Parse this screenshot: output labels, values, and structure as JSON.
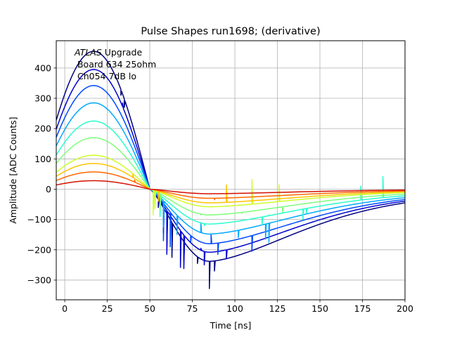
{
  "chart_data": {
    "type": "line",
    "title": "Pulse Shapes run1698; (derivative)",
    "xlabel": "Time [ns]",
    "ylabel": "Amplitude [ADC Counts]",
    "xlim": [
      -5,
      200
    ],
    "ylim": [
      -365,
      490
    ],
    "xticks": [
      0,
      25,
      50,
      75,
      100,
      125,
      150,
      175,
      200
    ],
    "xtick_labels": [
      "0",
      "25",
      "50",
      "75",
      "100",
      "125",
      "150",
      "175",
      "200"
    ],
    "yticks": [
      -300,
      -200,
      -100,
      0,
      100,
      200,
      300,
      400
    ],
    "ytick_labels": [
      "−300",
      "−200",
      "−100",
      "0",
      "100",
      "200",
      "300",
      "400"
    ],
    "grid": true,
    "annotation": {
      "italic": "ATLAS",
      "line1_rest": " Upgrade",
      "line2": " Board 634 25ohm",
      "line3": " Ch054 7dB lo"
    },
    "series": [
      {
        "color": "#00007f",
        "peak": 455,
        "undershoot": -238,
        "spikes": [
          {
            "x": 33,
            "y": 310
          },
          {
            "x": 35,
            "y": 270
          },
          {
            "x": 55,
            "y": -60
          },
          {
            "x": 58,
            "y": -145
          },
          {
            "x": 60,
            "y": -200
          },
          {
            "x": 63,
            "y": -225
          },
          {
            "x": 70,
            "y": -235
          },
          {
            "x": 78,
            "y": -245
          },
          {
            "x": 85,
            "y": -328
          },
          {
            "x": 88,
            "y": -270
          }
        ]
      },
      {
        "color": "#0000d0",
        "peak": 395,
        "undershoot": -208,
        "spikes": [
          {
            "x": 34,
            "y": 285
          },
          {
            "x": 60,
            "y": -215
          },
          {
            "x": 68,
            "y": -258
          },
          {
            "x": 70,
            "y": -262
          },
          {
            "x": 80,
            "y": -195
          },
          {
            "x": 82,
            "y": -250
          },
          {
            "x": 95,
            "y": -230
          }
        ]
      },
      {
        "color": "#0049ff",
        "peak": 342,
        "undershoot": -180,
        "spikes": [
          {
            "x": 58,
            "y": -170
          },
          {
            "x": 62,
            "y": -190
          },
          {
            "x": 74,
            "y": -175
          },
          {
            "x": 86,
            "y": -150
          },
          {
            "x": 90,
            "y": -215
          },
          {
            "x": 110,
            "y": -205
          }
        ]
      },
      {
        "color": "#00a9ff",
        "peak": 285,
        "undershoot": -148,
        "spikes": [
          {
            "x": 58,
            "y": -125
          },
          {
            "x": 66,
            "y": -150
          },
          {
            "x": 80,
            "y": -110
          },
          {
            "x": 102,
            "y": -160
          },
          {
            "x": 118,
            "y": -165
          },
          {
            "x": 120,
            "y": -175
          }
        ]
      },
      {
        "color": "#29ffce",
        "peak": 225,
        "undershoot": -115,
        "spikes": [
          {
            "x": 56,
            "y": -90
          },
          {
            "x": 82,
            "y": -120
          },
          {
            "x": 116,
            "y": -118
          },
          {
            "x": 120,
            "y": -85
          },
          {
            "x": 140,
            "y": -100
          },
          {
            "x": 142,
            "y": -80
          },
          {
            "x": 174,
            "y": 10
          },
          {
            "x": 187,
            "y": 42
          }
        ]
      },
      {
        "color": "#7dff7a",
        "peak": 170,
        "undershoot": -85,
        "spikes": [
          {
            "x": 56,
            "y": -70
          },
          {
            "x": 80,
            "y": -85
          },
          {
            "x": 104,
            "y": -80
          },
          {
            "x": 128,
            "y": -75
          }
        ]
      },
      {
        "color": "#ceff29",
        "peak": 112,
        "undershoot": -58,
        "spikes": [
          {
            "x": 52,
            "y": -85
          },
          {
            "x": 53,
            "y": -65
          },
          {
            "x": 110,
            "y": 32
          },
          {
            "x": 126,
            "y": 15
          }
        ]
      },
      {
        "color": "#ffc400",
        "peak": 85,
        "undershoot": -45,
        "spikes": [
          {
            "x": 40,
            "y": 50
          },
          {
            "x": 55,
            "y": -40
          },
          {
            "x": 95,
            "y": 14
          }
        ]
      },
      {
        "color": "#ff6800",
        "peak": 57,
        "undershoot": -30,
        "spikes": [
          {
            "x": 41,
            "y": 30
          },
          {
            "x": 88,
            "y": -35
          }
        ]
      },
      {
        "color": "#d41000",
        "peak": 28,
        "undershoot": -15,
        "spikes": []
      }
    ]
  }
}
